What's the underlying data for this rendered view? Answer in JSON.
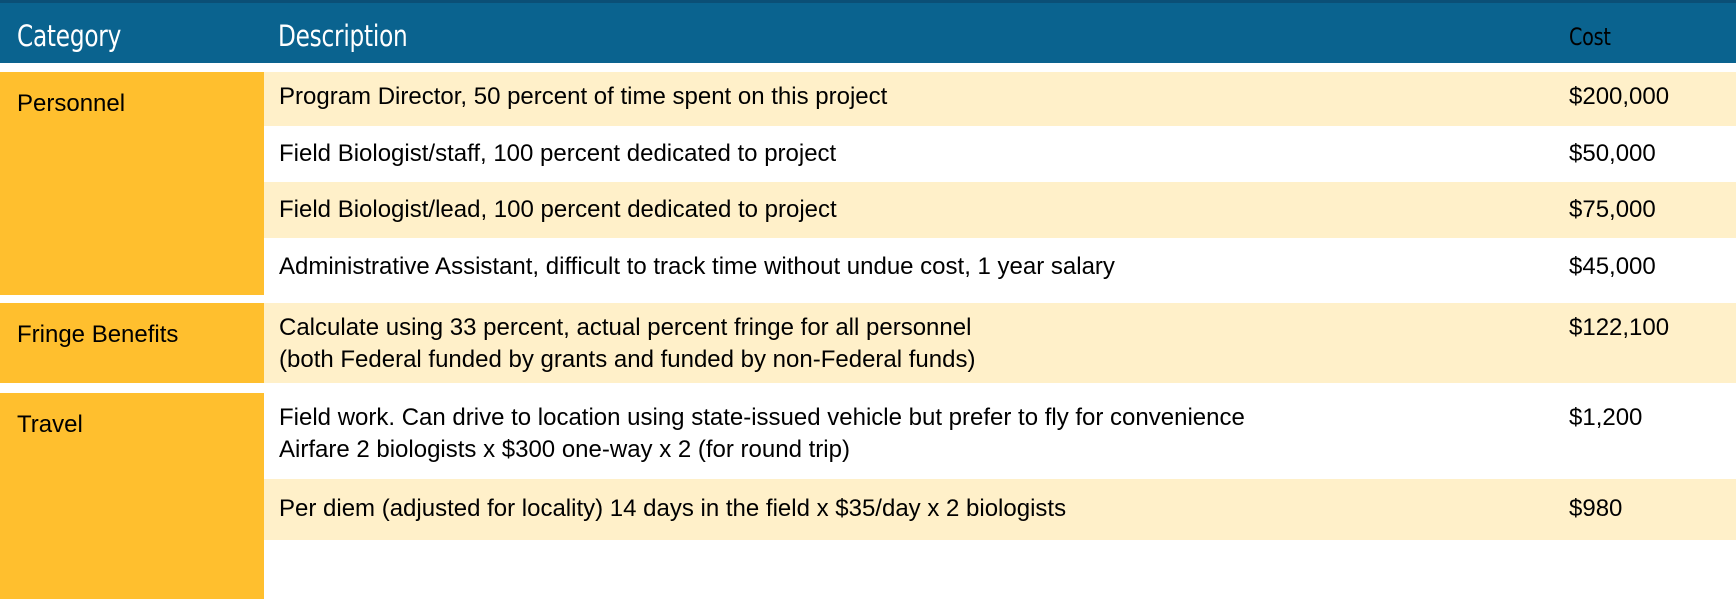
{
  "table": {
    "headers": {
      "category": "Category",
      "description": "Description",
      "cost": "Cost"
    },
    "colors": {
      "header_bg": "#0a638f",
      "category_bg": "#ffbf2e",
      "row_shaded_bg": "#fff0c9",
      "row_plain_bg": "#ffffff"
    },
    "categories": [
      {
        "label": "Personnel"
      },
      {
        "label": "Fringe Benefits"
      },
      {
        "label": "Travel"
      }
    ],
    "rows": [
      {
        "description": "Program Director, 50 percent of time spent on this project",
        "cost": "$200,000"
      },
      {
        "description": "Field Biologist/staff, 100 percent dedicated to project",
        "cost": "$50,000"
      },
      {
        "description": "Field Biologist/lead, 100 percent dedicated to project",
        "cost": "$75,000"
      },
      {
        "description": "Administrative Assistant, difficult to track time without undue cost, 1 year salary",
        "cost": "$45,000"
      },
      {
        "description_line1": "Calculate using 33 percent, actual percent fringe for all personnel",
        "description_line2": "(both Federal funded by grants and funded by non-Federal funds)",
        "cost": "$122,100"
      },
      {
        "description_line1": "Field work. Can drive to location using state-issued vehicle but prefer to fly for convenience",
        "description_line2": "Airfare 2 biologists x $300 one-way x 2 (for round trip)",
        "cost": "$1,200"
      },
      {
        "description": "Per diem (adjusted for locality) 14 days in the field x $35/day x 2 biologists",
        "cost": "$980"
      }
    ]
  }
}
